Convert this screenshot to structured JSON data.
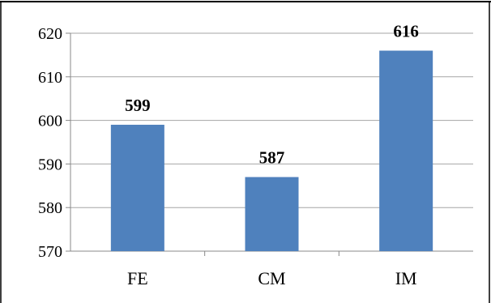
{
  "chart_data": {
    "type": "bar",
    "title": "",
    "xlabel": "",
    "ylabel": "",
    "categories": [
      "FE",
      "CM",
      "IM"
    ],
    "values": [
      599,
      587,
      616
    ],
    "data_labels": [
      "599",
      "587",
      "616"
    ],
    "ylim": [
      570,
      620
    ],
    "yticks": [
      570,
      580,
      590,
      600,
      610,
      620
    ],
    "ytick_labels": [
      "570",
      "580",
      "590",
      "600",
      "610",
      "620"
    ],
    "grid": true,
    "legend": "none",
    "colors": {
      "bar": "#4f81bd",
      "grid": "#a6a6a6",
      "axis": "#888888",
      "frame": "#000000"
    }
  }
}
